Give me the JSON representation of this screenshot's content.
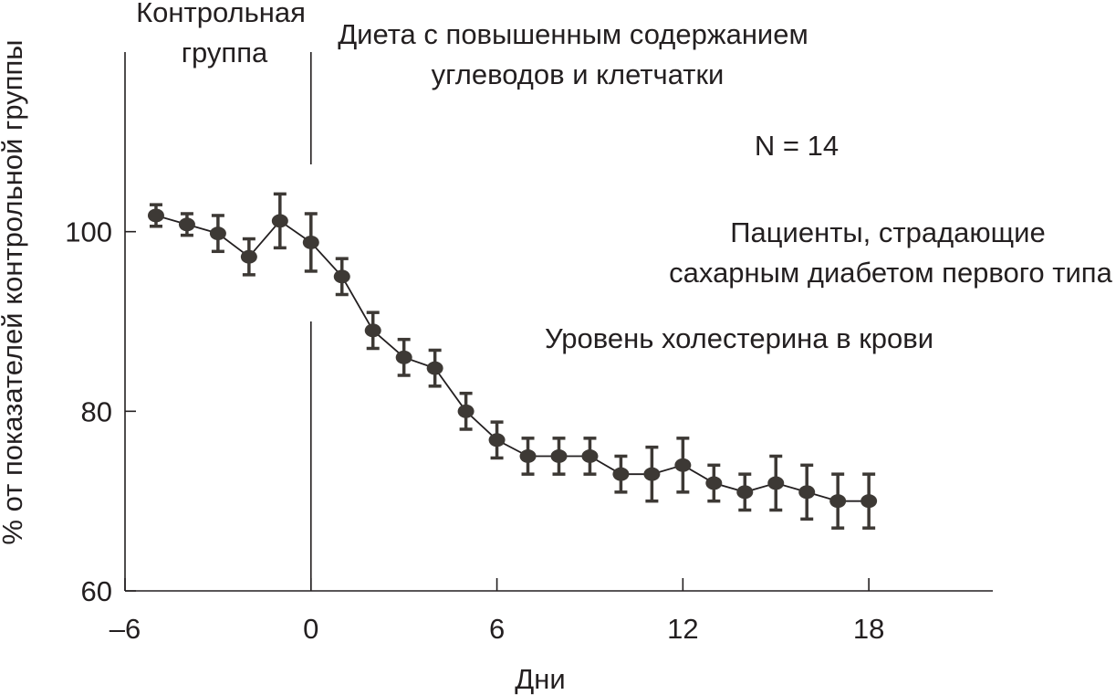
{
  "chart_data": {
    "type": "line",
    "title": "",
    "xlabel": "Дни",
    "ylabel": "% от показателей контрольной группы",
    "xlim": [
      -6,
      22
    ],
    "ylim": [
      60,
      120
    ],
    "x_ticks": [
      -6,
      0,
      6,
      12,
      18
    ],
    "x_tick_labels": [
      "–6",
      "0",
      "6",
      "12",
      "18"
    ],
    "y_ticks": [
      60,
      80,
      100
    ],
    "y_tick_labels": [
      "60",
      "80",
      "100"
    ],
    "grid": false,
    "separator_x": 0,
    "series": [
      {
        "x": [
          -5,
          -4,
          -3,
          -2,
          -1,
          0,
          1,
          2,
          3,
          4,
          5,
          6,
          7,
          8,
          9,
          10,
          11,
          12,
          13,
          14,
          15,
          16,
          17,
          18
        ],
        "y": [
          101.8,
          100.8,
          99.8,
          97.2,
          101.2,
          98.8,
          95.0,
          89.0,
          86.0,
          84.8,
          80.0,
          76.8,
          75.0,
          75.0,
          75.0,
          73.0,
          73.0,
          74.0,
          72.0,
          71.0,
          72.0,
          71.0,
          70.0,
          70.0
        ],
        "err": [
          1.2,
          1.2,
          2.0,
          2.0,
          3.0,
          3.2,
          2.0,
          2.0,
          2.0,
          2.0,
          2.0,
          2.0,
          2.0,
          2.0,
          2.0,
          2.0,
          3.0,
          3.0,
          2.0,
          2.0,
          3.0,
          3.0,
          3.0,
          3.0
        ]
      }
    ],
    "annotations": {
      "control_line1": "Контрольная",
      "control_line2": "группа",
      "diet_line1": "Диета с повышенным содержанием",
      "diet_line2": "углеводов и клетчатки",
      "n": "N = 14",
      "patients_line1": "Пациенты, страдающие",
      "patients_line2": "сахарным диабетом первого типа",
      "measure": "Уровень холестерина в крови"
    }
  }
}
